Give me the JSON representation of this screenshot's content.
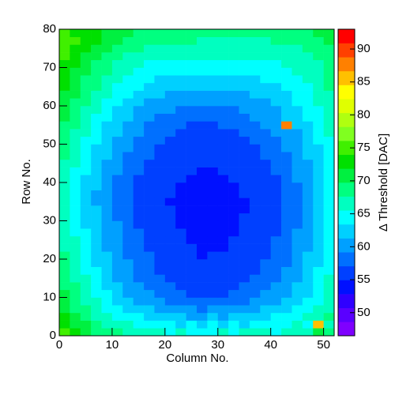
{
  "chart_data": {
    "type": "heatmap",
    "x_label": "Column No.",
    "y_label": "Row No.",
    "z_label": "Δ Threshold [DAC]",
    "xlim": [
      0,
      52
    ],
    "ylim": [
      0,
      80
    ],
    "zlim": [
      46.5,
      93
    ],
    "xticks": [
      0,
      10,
      20,
      30,
      40,
      50
    ],
    "yticks": [
      0,
      10,
      20,
      30,
      40,
      50,
      60,
      70,
      80
    ],
    "zticks": [
      50,
      55,
      60,
      65,
      70,
      75,
      80,
      85,
      90
    ],
    "palette": [
      "#7f00ff",
      "#5a00ff",
      "#3000ff",
      "#0010ff",
      "#0040ff",
      "#0070ff",
      "#00a0ff",
      "#00d0ff",
      "#00ffff",
      "#00ffc0",
      "#00ff80",
      "#00f040",
      "#00e000",
      "#40f000",
      "#80ff20",
      "#b0ff10",
      "#e0ff00",
      "#ffff00",
      "#ffc000",
      "#ff8000",
      "#ff4000",
      "#ff0000"
    ],
    "z": [
      [
        74,
        72,
        70,
        69,
        68,
        68,
        67,
        66,
        67,
        66,
        65,
        66,
        65,
        64,
        65,
        66,
        65,
        66,
        67,
        66,
        65,
        66,
        67,
        66,
        70,
        68
      ],
      [
        73,
        71,
        70,
        68,
        67,
        66,
        66,
        65,
        65,
        64,
        64,
        63,
        64,
        63,
        64,
        63,
        64,
        63,
        64,
        65,
        64,
        65,
        66,
        65,
        85,
        67
      ],
      [
        72,
        70,
        69,
        67,
        66,
        65,
        64,
        64,
        63,
        63,
        62,
        62,
        61,
        61,
        62,
        61,
        62,
        62,
        63,
        63,
        64,
        64,
        65,
        66,
        67,
        68
      ],
      [
        71,
        69,
        68,
        66,
        65,
        64,
        63,
        62,
        62,
        61,
        60,
        60,
        60,
        59,
        60,
        60,
        60,
        61,
        61,
        62,
        62,
        63,
        64,
        65,
        66,
        67
      ],
      [
        70,
        69,
        67,
        66,
        64,
        63,
        62,
        61,
        61,
        60,
        59,
        59,
        58,
        58,
        59,
        58,
        59,
        59,
        60,
        61,
        61,
        62,
        63,
        64,
        65,
        67
      ],
      [
        70,
        68,
        66,
        65,
        64,
        62,
        61,
        60,
        60,
        59,
        58,
        58,
        57,
        57,
        57,
        57,
        58,
        58,
        59,
        60,
        60,
        61,
        62,
        63,
        65,
        66
      ],
      [
        69,
        68,
        66,
        64,
        63,
        62,
        61,
        60,
        59,
        58,
        58,
        57,
        57,
        56,
        56,
        57,
        57,
        58,
        58,
        59,
        60,
        61,
        62,
        63,
        64,
        66
      ],
      [
        69,
        67,
        66,
        64,
        63,
        61,
        60,
        59,
        59,
        58,
        57,
        57,
        56,
        56,
        56,
        56,
        56,
        57,
        58,
        59,
        59,
        60,
        61,
        62,
        64,
        66
      ],
      [
        68,
        67,
        65,
        64,
        62,
        61,
        60,
        59,
        58,
        57,
        57,
        56,
        56,
        55,
        55,
        56,
        56,
        57,
        57,
        58,
        59,
        60,
        61,
        62,
        64,
        65
      ],
      [
        68,
        66,
        65,
        63,
        62,
        61,
        60,
        59,
        58,
        57,
        56,
        56,
        55,
        55,
        55,
        55,
        56,
        56,
        57,
        58,
        58,
        59,
        61,
        62,
        63,
        65
      ],
      [
        68,
        66,
        64,
        63,
        62,
        60,
        59,
        58,
        58,
        57,
        56,
        55,
        55,
        54,
        55,
        55,
        55,
        56,
        57,
        57,
        58,
        59,
        60,
        62,
        63,
        65
      ],
      [
        67,
        66,
        64,
        63,
        61,
        60,
        59,
        58,
        57,
        57,
        56,
        55,
        55,
        54,
        54,
        54,
        55,
        56,
        56,
        57,
        58,
        59,
        60,
        61,
        63,
        65
      ],
      [
        67,
        66,
        64,
        62,
        61,
        60,
        59,
        58,
        57,
        56,
        56,
        55,
        54,
        54,
        54,
        54,
        55,
        55,
        56,
        57,
        58,
        59,
        60,
        61,
        63,
        64
      ],
      [
        67,
        65,
        64,
        62,
        61,
        60,
        59,
        58,
        57,
        56,
        55,
        55,
        54,
        53,
        54,
        54,
        54,
        55,
        56,
        57,
        57,
        58,
        60,
        61,
        63,
        64
      ],
      [
        67,
        65,
        63,
        62,
        61,
        60,
        58,
        57,
        57,
        56,
        55,
        54,
        54,
        53,
        53,
        54,
        54,
        55,
        56,
        56,
        57,
        58,
        59,
        61,
        62,
        64
      ],
      [
        66,
        65,
        63,
        62,
        61,
        59,
        58,
        57,
        56,
        56,
        55,
        54,
        54,
        53,
        53,
        53,
        54,
        55,
        55,
        56,
        57,
        58,
        59,
        61,
        62,
        64
      ],
      [
        66,
        65,
        63,
        62,
        60,
        59,
        58,
        57,
        56,
        55,
        55,
        54,
        53,
        53,
        53,
        53,
        54,
        54,
        55,
        56,
        57,
        58,
        59,
        60,
        62,
        64
      ],
      [
        66,
        65,
        63,
        61,
        60,
        59,
        58,
        57,
        56,
        55,
        54,
        54,
        53,
        53,
        53,
        53,
        54,
        54,
        55,
        56,
        57,
        58,
        59,
        60,
        62,
        64
      ],
      [
        66,
        64,
        63,
        61,
        60,
        59,
        58,
        57,
        56,
        55,
        55,
        54,
        54,
        53,
        53,
        54,
        54,
        55,
        55,
        56,
        57,
        58,
        59,
        61,
        62,
        64
      ],
      [
        66,
        65,
        63,
        62,
        60,
        59,
        58,
        57,
        56,
        56,
        55,
        54,
        54,
        54,
        54,
        54,
        54,
        55,
        56,
        56,
        57,
        58,
        59,
        61,
        62,
        64
      ],
      [
        67,
        65,
        63,
        62,
        61,
        59,
        58,
        57,
        57,
        56,
        55,
        55,
        54,
        54,
        54,
        54,
        55,
        55,
        56,
        57,
        57,
        58,
        60,
        61,
        62,
        64
      ],
      [
        67,
        65,
        64,
        62,
        61,
        60,
        59,
        58,
        57,
        56,
        56,
        55,
        55,
        54,
        54,
        55,
        55,
        56,
        56,
        57,
        58,
        59,
        60,
        61,
        63,
        64
      ],
      [
        67,
        66,
        64,
        63,
        61,
        60,
        59,
        58,
        57,
        57,
        56,
        55,
        55,
        55,
        55,
        55,
        55,
        56,
        57,
        57,
        58,
        59,
        60,
        61,
        63,
        65
      ],
      [
        68,
        66,
        64,
        63,
        62,
        60,
        59,
        58,
        58,
        57,
        56,
        56,
        55,
        55,
        55,
        55,
        56,
        56,
        57,
        58,
        58,
        59,
        60,
        62,
        63,
        65
      ],
      [
        68,
        66,
        65,
        63,
        62,
        61,
        60,
        59,
        58,
        57,
        57,
        56,
        56,
        55,
        55,
        56,
        56,
        57,
        57,
        58,
        59,
        60,
        61,
        62,
        63,
        65
      ],
      [
        68,
        67,
        65,
        64,
        62,
        61,
        60,
        59,
        58,
        58,
        57,
        57,
        56,
        56,
        56,
        56,
        57,
        57,
        58,
        58,
        59,
        60,
        61,
        62,
        64,
        65
      ],
      [
        69,
        67,
        66,
        64,
        63,
        62,
        61,
        60,
        59,
        58,
        58,
        57,
        57,
        57,
        57,
        57,
        57,
        58,
        58,
        59,
        60,
        60,
        61,
        63,
        64,
        66
      ],
      [
        69,
        68,
        66,
        65,
        63,
        62,
        61,
        60,
        59,
        59,
        58,
        58,
        57,
        57,
        57,
        58,
        58,
        58,
        59,
        60,
        60,
        88,
        62,
        63,
        64,
        66
      ],
      [
        70,
        68,
        67,
        65,
        64,
        63,
        62,
        61,
        60,
        59,
        59,
        58,
        58,
        58,
        58,
        58,
        59,
        59,
        60,
        60,
        61,
        62,
        63,
        64,
        65,
        66
      ],
      [
        70,
        69,
        67,
        66,
        65,
        63,
        62,
        61,
        61,
        60,
        60,
        59,
        59,
        59,
        59,
        59,
        59,
        60,
        60,
        61,
        61,
        62,
        63,
        64,
        65,
        67
      ],
      [
        71,
        69,
        68,
        66,
        65,
        64,
        63,
        62,
        61,
        61,
        60,
        60,
        60,
        60,
        60,
        60,
        60,
        60,
        61,
        61,
        62,
        63,
        64,
        65,
        66,
        67
      ],
      [
        71,
        70,
        68,
        67,
        66,
        65,
        64,
        63,
        62,
        62,
        61,
        61,
        61,
        61,
        61,
        61,
        61,
        61,
        62,
        62,
        63,
        63,
        64,
        65,
        66,
        67
      ],
      [
        72,
        70,
        69,
        68,
        66,
        65,
        64,
        64,
        63,
        62,
        62,
        62,
        62,
        62,
        62,
        62,
        62,
        62,
        62,
        63,
        63,
        64,
        65,
        65,
        66,
        68
      ],
      [
        72,
        71,
        69,
        68,
        67,
        66,
        65,
        64,
        64,
        63,
        63,
        63,
        63,
        63,
        63,
        63,
        63,
        63,
        63,
        64,
        64,
        65,
        65,
        66,
        67,
        68
      ],
      [
        73,
        71,
        70,
        69,
        68,
        67,
        66,
        65,
        65,
        64,
        64,
        64,
        64,
        64,
        64,
        64,
        64,
        64,
        64,
        64,
        65,
        65,
        66,
        66,
        67,
        68
      ],
      [
        73,
        72,
        70,
        69,
        68,
        67,
        66,
        66,
        65,
        65,
        65,
        65,
        65,
        65,
        65,
        65,
        65,
        65,
        65,
        65,
        65,
        66,
        66,
        67,
        67,
        68
      ],
      [
        74,
        72,
        71,
        70,
        69,
        68,
        67,
        67,
        66,
        66,
        66,
        66,
        66,
        66,
        66,
        66,
        66,
        66,
        66,
        66,
        66,
        66,
        67,
        67,
        68,
        69
      ],
      [
        74,
        73,
        72,
        71,
        70,
        69,
        68,
        68,
        67,
        67,
        67,
        67,
        67,
        67,
        67,
        66,
        66,
        66,
        66,
        66,
        67,
        67,
        67,
        68,
        68,
        69
      ],
      [
        75,
        74,
        73,
        72,
        71,
        70,
        69,
        69,
        68,
        68,
        68,
        68,
        68,
        67,
        67,
        67,
        67,
        67,
        67,
        67,
        68,
        68,
        68,
        68,
        69,
        70
      ],
      [
        74,
        73,
        73,
        72,
        71,
        70,
        70,
        69,
        69,
        69,
        68,
        68,
        68,
        68,
        68,
        68,
        68,
        68,
        68,
        68,
        68,
        69,
        69,
        69,
        70,
        70
      ]
    ]
  }
}
